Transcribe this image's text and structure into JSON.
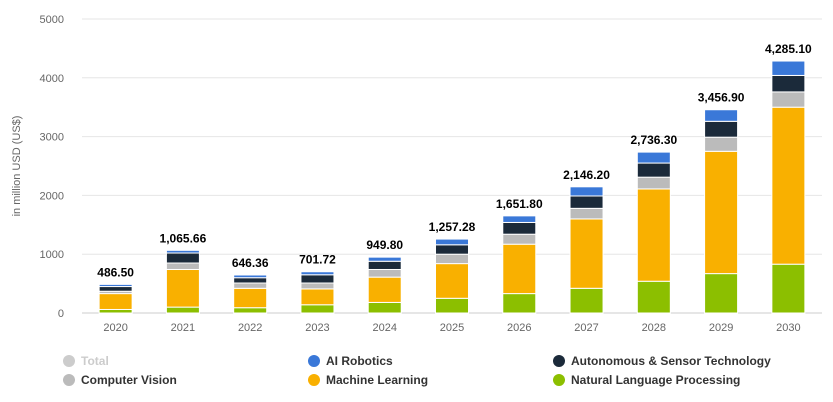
{
  "chart_data": {
    "type": "bar",
    "stacked": true,
    "ylabel": "in million USD (US$)",
    "ylim": [
      0,
      5000
    ],
    "yticks": [
      0,
      1000,
      2000,
      3000,
      4000,
      5000
    ],
    "ytick_labels": [
      "0",
      "1000",
      "2000",
      "3000",
      "4000",
      "5000"
    ],
    "categories": [
      "2020",
      "2021",
      "2022",
      "2023",
      "2024",
      "2025",
      "2026",
      "2027",
      "2028",
      "2029",
      "2030"
    ],
    "totals": [
      486.5,
      1065.66,
      646.36,
      701.72,
      949.8,
      1257.28,
      1651.8,
      2146.2,
      2736.3,
      3456.9,
      4285.1
    ],
    "total_labels": [
      "486.50",
      "1,065.66",
      "646.36",
      "701.72",
      "949.80",
      "1,257.28",
      "1,651.80",
      "2,146.20",
      "2,736.30",
      "3,456.90",
      "4,285.10"
    ],
    "series": [
      {
        "name": "Natural Language Processing",
        "color": "#8cbf00",
        "values": [
          60,
          100,
          90,
          140,
          180,
          250,
          330,
          420,
          540,
          670,
          830
        ]
      },
      {
        "name": "Machine Learning",
        "color": "#f9b000",
        "values": [
          270,
          640,
          330,
          270,
          430,
          590,
          840,
          1180,
          1570,
          2080,
          2670
        ]
      },
      {
        "name": "Computer Vision",
        "color": "#bbbbbb",
        "values": [
          40,
          110,
          90,
          100,
          130,
          160,
          170,
          180,
          200,
          240,
          260
        ]
      },
      {
        "name": "Autonomous & Sensor Technology",
        "color": "#1b2a3a",
        "values": [
          80,
          170,
          90,
          140,
          140,
          160,
          200,
          210,
          240,
          270,
          280
        ]
      },
      {
        "name": "AI Robotics",
        "color": "#3a78d8",
        "values": [
          36.5,
          45.66,
          46.36,
          51.72,
          69.8,
          97.28,
          111.8,
          156.2,
          186.3,
          196.9,
          245.1
        ]
      }
    ],
    "legend": {
      "placement": "bottom",
      "items": [
        {
          "name": "Total",
          "color": "#cccccc",
          "hidden": true
        },
        {
          "name": "AI Robotics",
          "color": "#3a78d8",
          "hidden": false
        },
        {
          "name": "Autonomous & Sensor Technology",
          "color": "#1b2a3a",
          "hidden": false
        },
        {
          "name": "Computer Vision",
          "color": "#bbbbbb",
          "hidden": false
        },
        {
          "name": "Machine Learning",
          "color": "#f9b000",
          "hidden": false
        },
        {
          "name": "Natural Language Processing",
          "color": "#8cbf00",
          "hidden": false
        }
      ]
    },
    "grid": true
  }
}
